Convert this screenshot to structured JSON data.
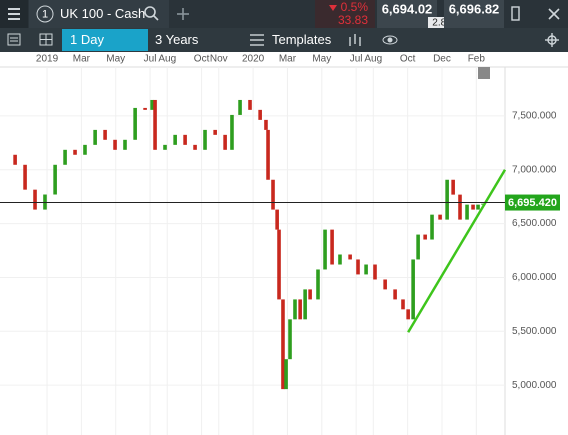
{
  "header": {
    "instrument_number": "1",
    "instrument": "UK 100 - Cash",
    "change_pct": "0.5%",
    "change": "33.83",
    "sell": "6,694.02",
    "spread": "2.80",
    "buy": "6,696.82",
    "interval": "1 Day",
    "range": "3 Years",
    "templates": "Templates"
  },
  "chart_data": {
    "type": "candlestick",
    "x": [
      -2.74,
      -1.86,
      -1.28,
      -0.7,
      -0.12,
      0.47,
      1.05,
      1.63,
      2.21,
      2.8,
      3.38,
      3.96,
      4.54,
      5.13,
      5.71,
      6.12,
      6.29,
      6.87,
      7.46,
      8.04,
      8.62,
      9.2,
      9.79,
      10.37,
      10.77,
      11.24,
      11.82,
      12.41,
      12.75,
      12.87,
      13.16,
      13.4,
      13.51,
      13.74,
      13.92,
      14.15,
      14.44,
      14.74,
      15.03,
      15.32,
      15.78,
      16.19,
      16.6,
      17.06,
      17.65,
      18.11,
      18.58,
      19.1,
      19.69,
      20.27,
      20.73,
      21.03,
      21.32,
      21.61,
      22.02,
      22.42,
      22.89,
      23.3,
      23.65,
      24.05,
      24.46,
      24.81,
      25.1,
      25.39
    ],
    "values": [
      7139,
      7046,
      6815,
      6630,
      6770,
      7046,
      7185,
      7139,
      7231,
      7370,
      7278,
      7185,
      7278,
      7574,
      7556,
      7648,
      7185,
      7231,
      7324,
      7231,
      7185,
      7370,
      7324,
      7185,
      7509,
      7648,
      7556,
      7463,
      7370,
      6907,
      6630,
      6444,
      5796,
      4963,
      5241,
      5611,
      5796,
      5611,
      5889,
      5796,
      6074,
      6444,
      6120,
      6213,
      6167,
      6028,
      6120,
      5981,
      5889,
      5796,
      5704,
      5611,
      6167,
      6398,
      6352,
      6583,
      6537,
      6907,
      6769,
      6537,
      6676,
      6630,
      6676,
      6685
    ],
    "up_color": "#2e9e1f",
    "down_color": "#c8281e",
    "xlim": [
      -2.74,
      26.67
    ],
    "xticks": [
      {
        "value": 0,
        "label": "2019"
      },
      {
        "value": 2,
        "label": "Mar"
      },
      {
        "value": 4,
        "label": "May"
      },
      {
        "value": 6,
        "label": "Jul"
      },
      {
        "value": 7,
        "label": "Aug"
      },
      {
        "value": 9,
        "label": "Oct"
      },
      {
        "value": 10,
        "label": "Nov"
      },
      {
        "value": 12,
        "label": "2020"
      },
      {
        "value": 14,
        "label": "Mar"
      },
      {
        "value": 16,
        "label": "May"
      },
      {
        "value": 18,
        "label": "Jul"
      },
      {
        "value": 19,
        "label": "Aug"
      },
      {
        "value": 21,
        "label": "Oct"
      },
      {
        "value": 23,
        "label": "Dec"
      },
      {
        "value": 25,
        "label": "Feb"
      }
    ],
    "ylim": [
      4537,
      7954
    ],
    "yticks": [
      {
        "value": 5000,
        "label": "5,000.000"
      },
      {
        "value": 5500,
        "label": "5,500.000"
      },
      {
        "value": 6000,
        "label": "6,000.000"
      },
      {
        "value": 6500,
        "label": "6,500.000"
      },
      {
        "value": 7000,
        "label": "7,000.000"
      },
      {
        "value": 7500,
        "label": "7,500.000"
      }
    ],
    "grid": true,
    "last_price": {
      "value": 6695.42,
      "label": "6,695.420"
    },
    "trendline": {
      "x": [
        21.03,
        26.67
      ],
      "values": [
        5491,
        7000
      ],
      "color": "#3ec51c"
    }
  }
}
